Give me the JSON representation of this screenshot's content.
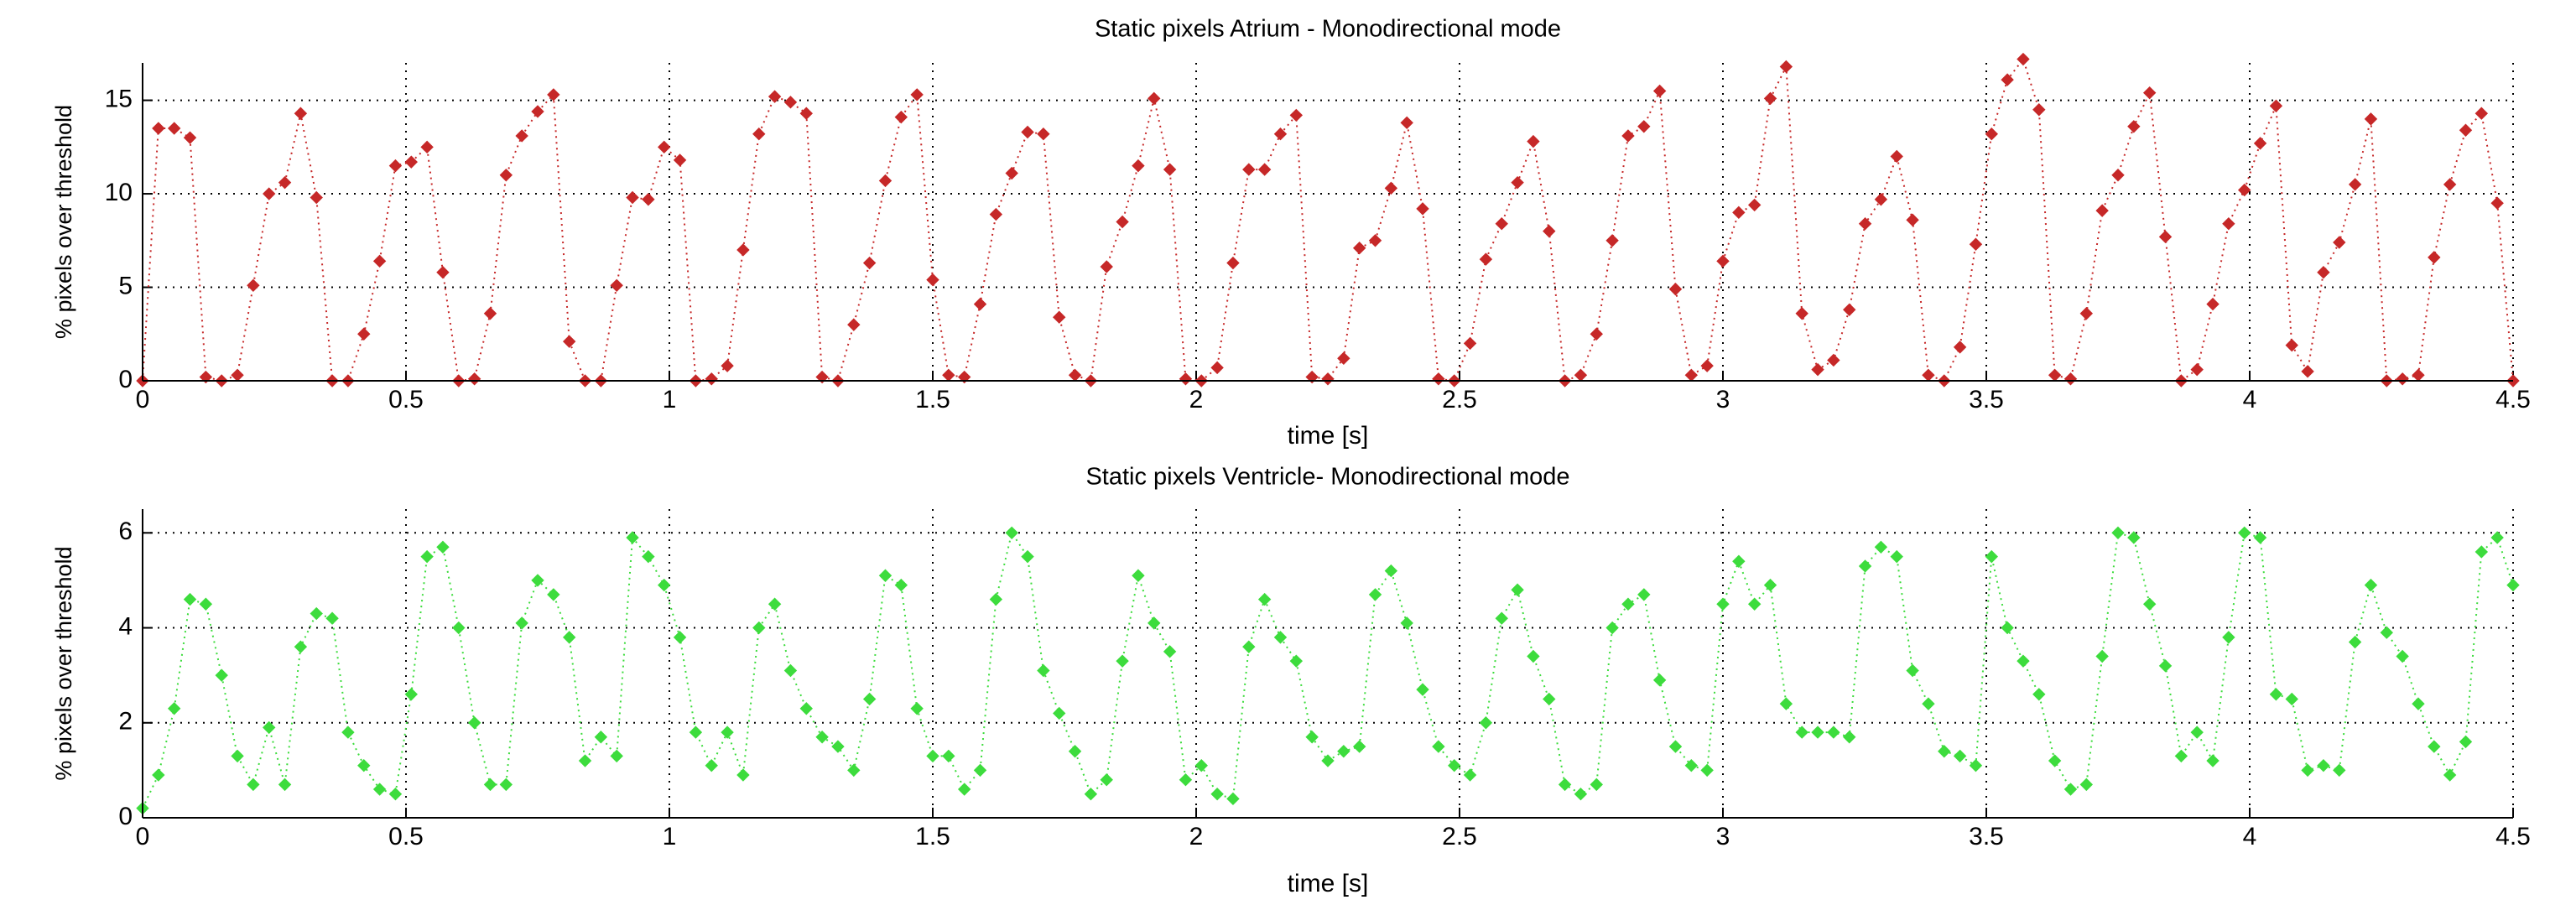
{
  "chart_data": [
    {
      "type": "line",
      "title": "Static pixels Atrium - Monodirectional mode",
      "xlabel": "time  [s]",
      "ylabel": "% pixels over threshold",
      "color": "#c62828",
      "line_style": "dotted",
      "marker": "diamond",
      "grid": true,
      "xlim": [
        0,
        4.5
      ],
      "xticks": [
        0,
        0.5,
        1,
        1.5,
        2,
        2.5,
        3,
        3.5,
        4,
        4.5
      ],
      "ylim": [
        0,
        17
      ],
      "yticks": [
        0,
        5,
        10,
        15
      ],
      "x": [
        0,
        0.03,
        0.06,
        0.09,
        0.12,
        0.15,
        0.18,
        0.21,
        0.24,
        0.27,
        0.3,
        0.33,
        0.36,
        0.39,
        0.42,
        0.45,
        0.48,
        0.51,
        0.54,
        0.57,
        0.6,
        0.63,
        0.66,
        0.69,
        0.72,
        0.75,
        0.78,
        0.81,
        0.84,
        0.87,
        0.9,
        0.93,
        0.96,
        0.99,
        1.02,
        1.05,
        1.08,
        1.11,
        1.14,
        1.17,
        1.2,
        1.23,
        1.26,
        1.29,
        1.32,
        1.35,
        1.38,
        1.41,
        1.44,
        1.47,
        1.5,
        1.53,
        1.56,
        1.59,
        1.62,
        1.65,
        1.68,
        1.71,
        1.74,
        1.77,
        1.8,
        1.83,
        1.86,
        1.89,
        1.92,
        1.95,
        1.98,
        2.01,
        2.04,
        2.07,
        2.1,
        2.13,
        2.16,
        2.19,
        2.22,
        2.25,
        2.28,
        2.31,
        2.34,
        2.37,
        2.4,
        2.43,
        2.46,
        2.49,
        2.52,
        2.55,
        2.58,
        2.61,
        2.64,
        2.67,
        2.7,
        2.73,
        2.76,
        2.79,
        2.82,
        2.85,
        2.88,
        2.91,
        2.94,
        2.97,
        3,
        3.03,
        3.06,
        3.09,
        3.12,
        3.15,
        3.18,
        3.21,
        3.24,
        3.27,
        3.3,
        3.33,
        3.36,
        3.39,
        3.42,
        3.45,
        3.48,
        3.51,
        3.54,
        3.57,
        3.6,
        3.63,
        3.66,
        3.69,
        3.72,
        3.75,
        3.78,
        3.81,
        3.84,
        3.87,
        3.9,
        3.93,
        3.96,
        3.99,
        4.02,
        4.05,
        4.08,
        4.11,
        4.14,
        4.17,
        4.2,
        4.23,
        4.26,
        4.29,
        4.32,
        4.35,
        4.38,
        4.41,
        4.44,
        4.47,
        4.5
      ],
      "values": [
        0,
        13.5,
        13.5,
        13,
        0.2,
        0,
        0.3,
        5.1,
        10,
        10.6,
        14.3,
        9.8,
        0,
        0,
        2.5,
        6.4,
        11.5,
        11.7,
        12.5,
        5.8,
        0,
        0.1,
        3.6,
        11,
        13.1,
        14.4,
        15.3,
        2.1,
        0,
        0,
        5.1,
        9.8,
        9.7,
        12.5,
        11.8,
        0,
        0.1,
        0.8,
        7,
        13.2,
        15.2,
        14.9,
        14.3,
        0.2,
        0,
        3,
        6.3,
        10.7,
        14.1,
        15.3,
        5.4,
        0.3,
        0.2,
        4.1,
        8.9,
        11.1,
        13.3,
        13.2,
        3.4,
        0.3,
        0,
        6.1,
        8.5,
        11.5,
        15.1,
        11.3,
        0.1,
        0,
        0.7,
        6.3,
        11.3,
        11.3,
        13.2,
        14.2,
        0.2,
        0.1,
        1.2,
        7.1,
        7.5,
        10.3,
        13.8,
        9.2,
        0.1,
        0,
        2,
        6.5,
        8.4,
        10.6,
        12.8,
        8,
        0,
        0.3,
        2.5,
        7.5,
        13.1,
        13.6,
        15.5,
        4.9,
        0.3,
        0.8,
        6.4,
        9,
        9.4,
        15.1,
        16.8,
        3.6,
        0.6,
        1.1,
        3.8,
        8.4,
        9.7,
        12,
        8.6,
        0.3,
        0,
        1.8,
        7.3,
        13.2,
        16.1,
        17.2,
        14.5,
        0.3,
        0.1,
        3.6,
        9.1,
        11,
        13.6,
        15.4,
        7.7,
        0,
        0.6,
        4.1,
        8.4,
        10.2,
        12.7,
        14.7,
        1.9,
        0.5,
        5.8,
        7.4,
        10.5,
        14,
        0,
        0.1,
        0.3,
        6.6,
        10.5,
        13.4,
        14.3,
        9.5,
        0
      ]
    },
    {
      "type": "line",
      "title": "Static pixels Ventricle- Monodirectional mode",
      "xlabel": "time  [s]",
      "ylabel": "% pixels over threshold",
      "color": "#3ddc3d",
      "line_style": "dotted",
      "marker": "diamond",
      "grid": true,
      "xlim": [
        0,
        4.5
      ],
      "xticks": [
        0,
        0.5,
        1,
        1.5,
        2,
        2.5,
        3,
        3.5,
        4,
        4.5
      ],
      "ylim": [
        0,
        6.5
      ],
      "yticks": [
        0,
        2,
        4,
        6
      ],
      "x": [
        0,
        0.03,
        0.06,
        0.09,
        0.12,
        0.15,
        0.18,
        0.21,
        0.24,
        0.27,
        0.3,
        0.33,
        0.36,
        0.39,
        0.42,
        0.45,
        0.48,
        0.51,
        0.54,
        0.57,
        0.6,
        0.63,
        0.66,
        0.69,
        0.72,
        0.75,
        0.78,
        0.81,
        0.84,
        0.87,
        0.9,
        0.93,
        0.96,
        0.99,
        1.02,
        1.05,
        1.08,
        1.11,
        1.14,
        1.17,
        1.2,
        1.23,
        1.26,
        1.29,
        1.32,
        1.35,
        1.38,
        1.41,
        1.44,
        1.47,
        1.5,
        1.53,
        1.56,
        1.59,
        1.62,
        1.65,
        1.68,
        1.71,
        1.74,
        1.77,
        1.8,
        1.83,
        1.86,
        1.89,
        1.92,
        1.95,
        1.98,
        2.01,
        2.04,
        2.07,
        2.1,
        2.13,
        2.16,
        2.19,
        2.22,
        2.25,
        2.28,
        2.31,
        2.34,
        2.37,
        2.4,
        2.43,
        2.46,
        2.49,
        2.52,
        2.55,
        2.58,
        2.61,
        2.64,
        2.67,
        2.7,
        2.73,
        2.76,
        2.79,
        2.82,
        2.85,
        2.88,
        2.91,
        2.94,
        2.97,
        3,
        3.03,
        3.06,
        3.09,
        3.12,
        3.15,
        3.18,
        3.21,
        3.24,
        3.27,
        3.3,
        3.33,
        3.36,
        3.39,
        3.42,
        3.45,
        3.48,
        3.51,
        3.54,
        3.57,
        3.6,
        3.63,
        3.66,
        3.69,
        3.72,
        3.75,
        3.78,
        3.81,
        3.84,
        3.87,
        3.9,
        3.93,
        3.96,
        3.99,
        4.02,
        4.05,
        4.08,
        4.11,
        4.14,
        4.17,
        4.2,
        4.23,
        4.26,
        4.29,
        4.32,
        4.35,
        4.38,
        4.41,
        4.44,
        4.47,
        4.5
      ],
      "values": [
        0.2,
        0.9,
        2.3,
        4.6,
        4.5,
        3,
        1.3,
        0.7,
        1.9,
        0.7,
        3.6,
        4.3,
        4.2,
        1.8,
        1.1,
        0.6,
        0.5,
        2.6,
        5.5,
        5.7,
        4,
        2,
        0.7,
        0.7,
        4.1,
        5,
        4.7,
        3.8,
        1.2,
        1.7,
        1.3,
        5.9,
        5.5,
        4.9,
        3.8,
        1.8,
        1.1,
        1.8,
        0.9,
        4,
        4.5,
        3.1,
        2.3,
        1.7,
        1.5,
        1,
        2.5,
        5.1,
        4.9,
        2.3,
        1.3,
        1.3,
        0.6,
        1,
        4.6,
        6,
        5.5,
        3.1,
        2.2,
        1.4,
        0.5,
        0.8,
        3.3,
        5.1,
        4.1,
        3.5,
        0.8,
        1.1,
        0.5,
        0.4,
        3.6,
        4.6,
        3.8,
        3.3,
        1.7,
        1.2,
        1.4,
        1.5,
        4.7,
        5.2,
        4.1,
        2.7,
        1.5,
        1.1,
        0.9,
        2,
        4.2,
        4.8,
        3.4,
        2.5,
        0.7,
        0.5,
        0.7,
        4,
        4.5,
        4.7,
        2.9,
        1.5,
        1.1,
        1,
        4.5,
        5.4,
        4.5,
        4.9,
        2.4,
        1.8,
        1.8,
        1.8,
        1.7,
        5.3,
        5.7,
        5.5,
        3.1,
        2.4,
        1.4,
        1.3,
        1.1,
        5.5,
        4,
        3.3,
        2.6,
        1.2,
        0.6,
        0.7,
        3.4,
        6,
        5.9,
        4.5,
        3.2,
        1.3,
        1.8,
        1.2,
        3.8,
        6,
        5.9,
        2.6,
        2.5,
        1,
        1.1,
        1,
        3.7,
        4.9,
        3.9,
        3.4,
        2.4,
        1.5,
        0.9,
        1.6,
        5.6,
        5.9,
        4.9
      ]
    }
  ]
}
